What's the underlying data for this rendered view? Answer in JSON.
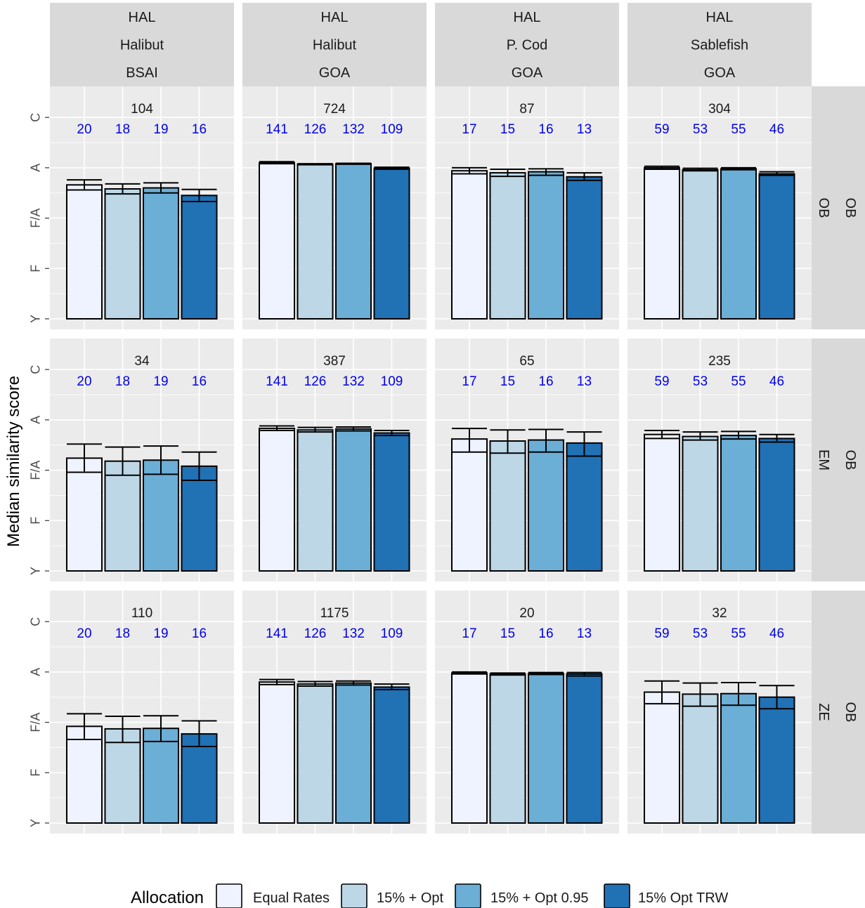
{
  "chart_data": {
    "type": "bar",
    "ylabel": "Median similarity score",
    "y_ticks": [
      "Y",
      "F",
      "F/A",
      "A",
      "C"
    ],
    "y_tick_values": [
      0,
      1,
      2,
      3,
      4
    ],
    "ylim": [
      0,
      4
    ],
    "grid": true,
    "legend": {
      "title": "Allocation",
      "placement": "bottom",
      "entries": [
        "Equal Rates",
        "15% + Opt",
        "15% + Opt 0.95",
        "15% Opt TRW"
      ],
      "colors": [
        "#eff3ff",
        "#bdd7e7",
        "#6baed6",
        "#2171b5"
      ]
    },
    "facet_columns": [
      {
        "strip": [
          "HAL",
          "Halibut",
          "BSAI"
        ]
      },
      {
        "strip": [
          "HAL",
          "Halibut",
          "GOA"
        ]
      },
      {
        "strip": [
          "HAL",
          "P. Cod",
          "GOA"
        ]
      },
      {
        "strip": [
          "HAL",
          "Sablefish",
          "GOA"
        ]
      }
    ],
    "facet_rows": [
      {
        "strip": [
          "OB",
          "OB"
        ]
      },
      {
        "strip": [
          "EM",
          "OB"
        ]
      },
      {
        "strip": [
          "ZE",
          "OB"
        ]
      }
    ],
    "panels": [
      [
        {
          "total": "104",
          "n": [
            "20",
            "18",
            "19",
            "16"
          ],
          "values": [
            2.66,
            2.58,
            2.6,
            2.45
          ],
          "err_low": [
            2.56,
            2.48,
            2.5,
            2.33
          ],
          "err_high": [
            2.76,
            2.68,
            2.7,
            2.57
          ]
        },
        {
          "total": "724",
          "n": [
            "141",
            "126",
            "132",
            "109"
          ],
          "values": [
            3.1,
            3.07,
            3.08,
            2.99
          ],
          "err_low": [
            3.08,
            3.06,
            3.07,
            2.97
          ],
          "err_high": [
            3.12,
            3.08,
            3.09,
            3.01
          ]
        },
        {
          "total": "87",
          "n": [
            "17",
            "15",
            "16",
            "13"
          ],
          "values": [
            2.94,
            2.9,
            2.92,
            2.82
          ],
          "err_low": [
            2.88,
            2.83,
            2.85,
            2.75
          ],
          "err_high": [
            3.0,
            2.97,
            2.98,
            2.9
          ]
        },
        {
          "total": "304",
          "n": [
            "59",
            "53",
            "55",
            "46"
          ],
          "values": [
            3.0,
            2.96,
            2.98,
            2.88
          ],
          "err_low": [
            2.97,
            2.94,
            2.96,
            2.85
          ],
          "err_high": [
            3.03,
            2.99,
            3.0,
            2.92
          ]
        }
      ],
      [
        {
          "total": "34",
          "n": [
            "20",
            "18",
            "19",
            "16"
          ],
          "values": [
            2.24,
            2.18,
            2.2,
            2.08
          ],
          "err_low": [
            1.96,
            1.9,
            1.92,
            1.8
          ],
          "err_high": [
            2.52,
            2.46,
            2.48,
            2.36
          ]
        },
        {
          "total": "387",
          "n": [
            "141",
            "126",
            "132",
            "109"
          ],
          "values": [
            2.83,
            2.8,
            2.82,
            2.74
          ],
          "err_low": [
            2.79,
            2.76,
            2.78,
            2.69
          ],
          "err_high": [
            2.88,
            2.85,
            2.86,
            2.79
          ]
        },
        {
          "total": "65",
          "n": [
            "17",
            "15",
            "16",
            "13"
          ],
          "values": [
            2.62,
            2.58,
            2.6,
            2.54
          ],
          "err_low": [
            2.36,
            2.34,
            2.36,
            2.28
          ],
          "err_high": [
            2.83,
            2.8,
            2.81,
            2.76
          ]
        },
        {
          "total": "235",
          "n": [
            "59",
            "53",
            "55",
            "46"
          ],
          "values": [
            2.71,
            2.67,
            2.69,
            2.63
          ],
          "err_low": [
            2.63,
            2.6,
            2.62,
            2.56
          ],
          "err_high": [
            2.79,
            2.76,
            2.77,
            2.71
          ]
        }
      ],
      [
        {
          "total": "110",
          "n": [
            "20",
            "18",
            "19",
            "16"
          ],
          "values": [
            1.92,
            1.87,
            1.88,
            1.77
          ],
          "err_low": [
            1.66,
            1.6,
            1.62,
            1.52
          ],
          "err_high": [
            2.17,
            2.12,
            2.13,
            2.03
          ]
        },
        {
          "total": "1175",
          "n": [
            "141",
            "126",
            "132",
            "109"
          ],
          "values": [
            2.8,
            2.76,
            2.78,
            2.7
          ],
          "err_low": [
            2.75,
            2.72,
            2.74,
            2.65
          ],
          "err_high": [
            2.85,
            2.81,
            2.82,
            2.76
          ]
        },
        {
          "total": "20",
          "n": [
            "17",
            "15",
            "16",
            "13"
          ],
          "values": [
            2.98,
            2.96,
            2.97,
            2.96
          ],
          "err_low": [
            2.96,
            2.94,
            2.95,
            2.92
          ],
          "err_high": [
            3.0,
            2.98,
            2.99,
            2.99
          ]
        },
        {
          "total": "32",
          "n": [
            "59",
            "53",
            "55",
            "46"
          ],
          "values": [
            2.6,
            2.56,
            2.57,
            2.5
          ],
          "err_low": [
            2.37,
            2.32,
            2.34,
            2.27
          ],
          "err_high": [
            2.82,
            2.78,
            2.79,
            2.73
          ]
        }
      ]
    ]
  }
}
